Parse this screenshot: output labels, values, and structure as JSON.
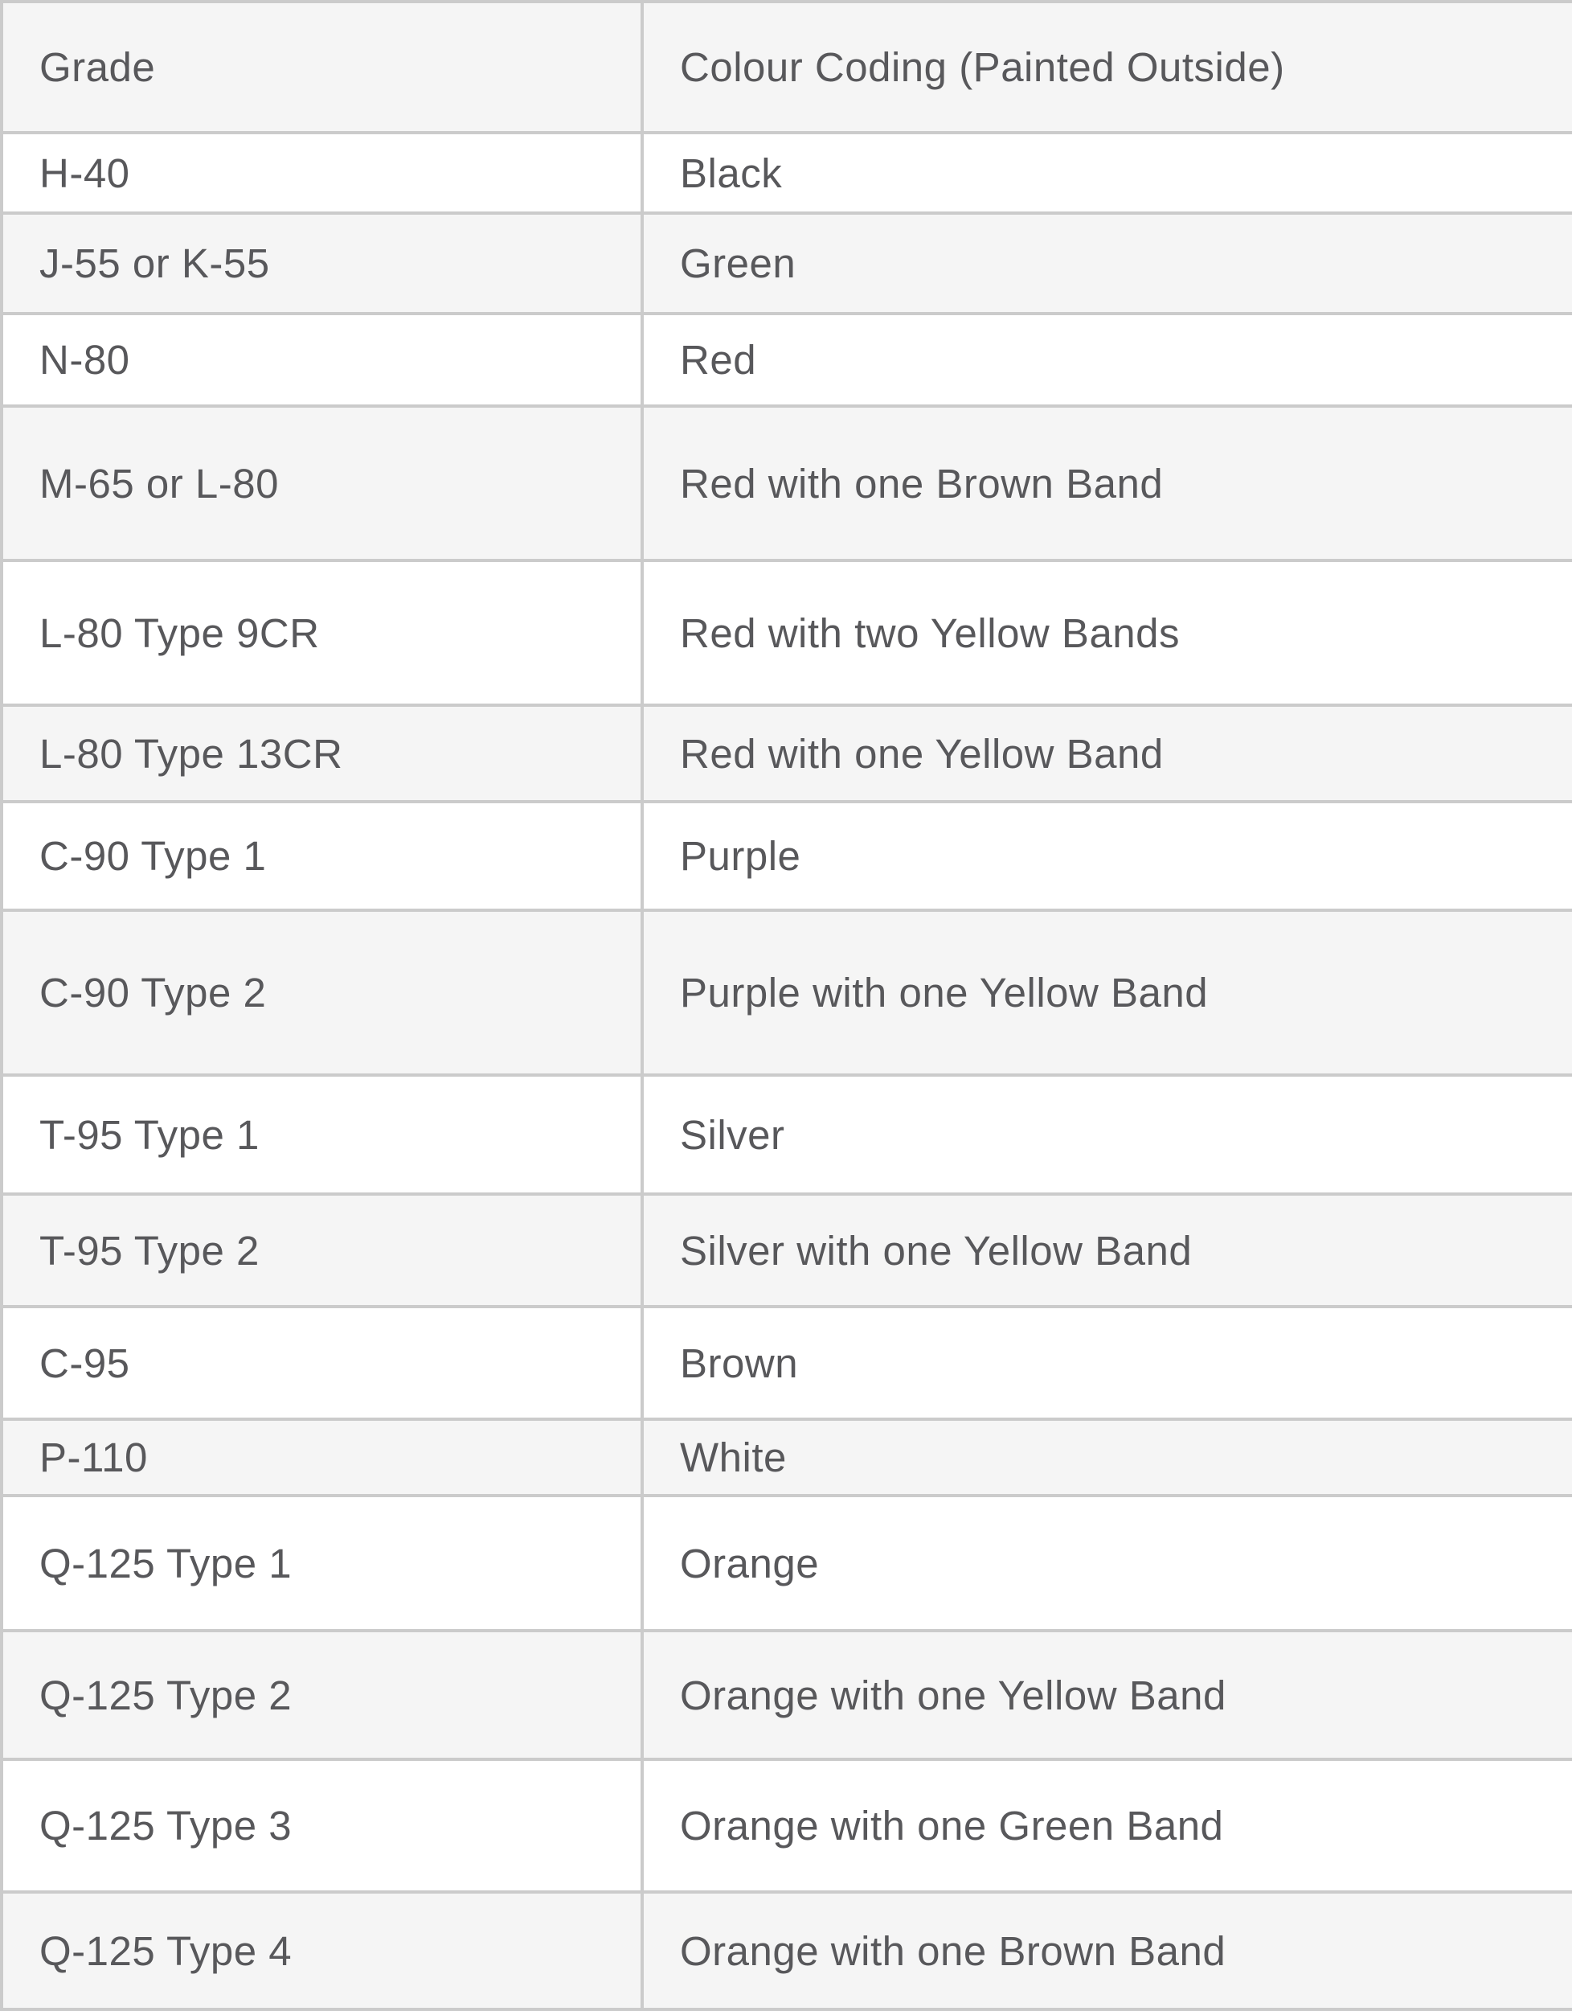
{
  "table": {
    "columns": [
      {
        "key": "grade",
        "label": "Grade"
      },
      {
        "key": "colour",
        "label": "Colour Coding (Painted Outside)"
      }
    ],
    "rows": [
      {
        "grade": "H-40",
        "colour": "Black"
      },
      {
        "grade": "J-55 or K-55",
        "colour": "Green"
      },
      {
        "grade": "N-80",
        "colour": "Red"
      },
      {
        "grade": "M-65 or L-80",
        "colour": "Red with one Brown Band"
      },
      {
        "grade": "L-80 Type 9CR",
        "colour": "Red with two Yellow Bands"
      },
      {
        "grade": "L-80 Type 13CR",
        "colour": "Red with one Yellow Band"
      },
      {
        "grade": "C-90 Type 1",
        "colour": "Purple"
      },
      {
        "grade": "C-90 Type 2",
        "colour": "Purple with one Yellow Band"
      },
      {
        "grade": "T-95 Type 1",
        "colour": "Silver"
      },
      {
        "grade": "T-95 Type 2",
        "colour": "Silver with one Yellow Band"
      },
      {
        "grade": "C-95",
        "colour": "Brown"
      },
      {
        "grade": "P-110",
        "colour": "White"
      },
      {
        "grade": "Q-125 Type 1",
        "colour": "Orange"
      },
      {
        "grade": "Q-125 Type 2",
        "colour": "Orange with one Yellow Band"
      },
      {
        "grade": "Q-125 Type 3",
        "colour": "Orange with one Green Band"
      },
      {
        "grade": "Q-125 Type 4",
        "colour": "Orange with one Brown Band"
      }
    ],
    "colors": {
      "stripe_background": "#f5f5f5",
      "row_background": "#ffffff",
      "border": "#cbcbcb",
      "text": "#58585b"
    }
  }
}
